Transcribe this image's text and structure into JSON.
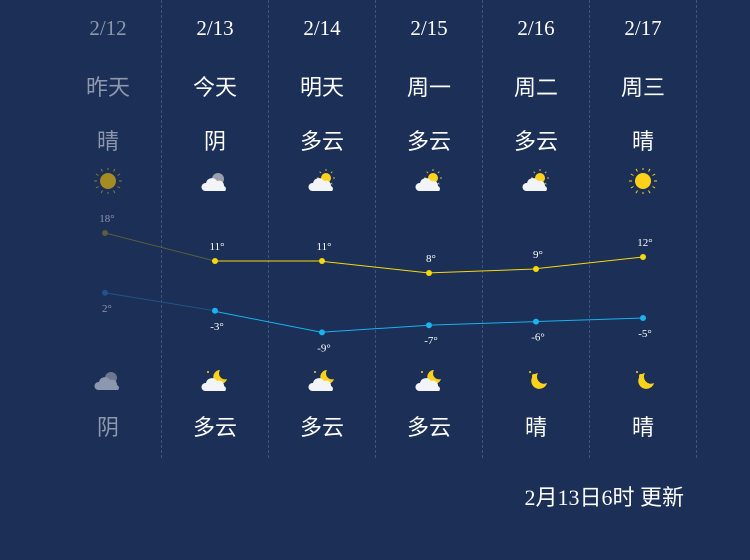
{
  "days": [
    {
      "date": "2/12",
      "label": "昨天",
      "day_weather": "晴",
      "day_icon": "sun-icon",
      "high": 18,
      "low": 2,
      "night_icon": "cloudy-icon",
      "night_weather": "阴",
      "past": true
    },
    {
      "date": "2/13",
      "label": "今天",
      "day_weather": "阴",
      "day_icon": "cloudy-icon",
      "high": 11,
      "low": -3,
      "night_icon": "moon-cloud-icon",
      "night_weather": "多云",
      "past": false
    },
    {
      "date": "2/14",
      "label": "明天",
      "day_weather": "多云",
      "day_icon": "sun-cloud-icon",
      "high": 11,
      "low": -9,
      "night_icon": "moon-cloud-icon",
      "night_weather": "多云",
      "past": false
    },
    {
      "date": "2/15",
      "label": "周一",
      "day_weather": "多云",
      "day_icon": "sun-cloud-icon",
      "high": 8,
      "low": -7,
      "night_icon": "moon-cloud-icon",
      "night_weather": "多云",
      "past": false
    },
    {
      "date": "2/16",
      "label": "周二",
      "day_weather": "多云",
      "day_icon": "sun-cloud-icon",
      "high": 9,
      "low": -6,
      "night_icon": "moon-icon",
      "night_weather": "晴",
      "past": false
    },
    {
      "date": "2/17",
      "label": "周三",
      "day_weather": "晴",
      "day_icon": "sun-icon",
      "high": 12,
      "low": -5,
      "night_icon": "moon-icon",
      "night_weather": "晴",
      "past": false
    }
  ],
  "temp_unit": "°",
  "colors": {
    "background": "#1b2f57",
    "high_line": "#f5d90a",
    "low_line": "#1ab2f0",
    "past_text": "#8d97ad"
  },
  "update_text": "2月13日6时 更新"
}
